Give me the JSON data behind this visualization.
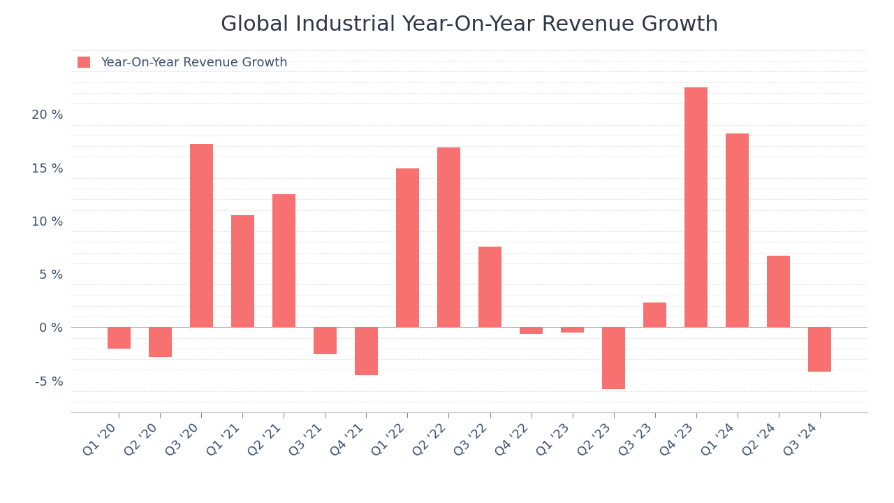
{
  "title": "Global Industrial Year-On-Year Revenue Growth",
  "legend_label": "Year-On-Year Revenue Growth",
  "categories": [
    "Q1 '20",
    "Q2 '20",
    "Q3 '20",
    "Q1 '21",
    "Q2 '21",
    "Q3 '21",
    "Q4 '21",
    "Q1 '22",
    "Q2 '22",
    "Q3 '22",
    "Q4 '22",
    "Q1 '23",
    "Q2 '23",
    "Q3 '23",
    "Q4 '23",
    "Q1 '24",
    "Q2 '24",
    "Q3 '24"
  ],
  "values": [
    -2.0,
    -2.8,
    17.2,
    10.5,
    12.5,
    -2.5,
    -4.5,
    14.9,
    16.9,
    7.6,
    -0.6,
    -0.5,
    -5.8,
    2.3,
    22.5,
    18.2,
    6.7,
    -4.2
  ],
  "bar_color": "#F87171",
  "title_color": "#2d3748",
  "tick_color": "#3d4f6b",
  "background_color": "#ffffff",
  "ylim": [
    -8,
    26
  ],
  "yticks": [
    -5,
    0,
    5,
    10,
    15,
    20
  ],
  "title_fontsize": 22,
  "legend_fontsize": 13,
  "tick_fontsize": 13
}
